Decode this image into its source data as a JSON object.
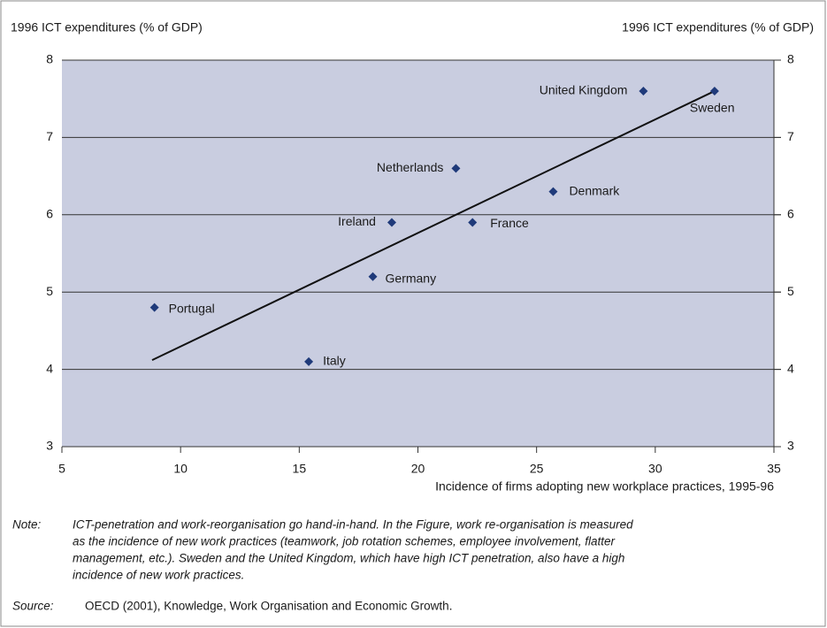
{
  "chart_data": {
    "type": "scatter",
    "y_label": "1996 ICT expenditures (% of GDP)",
    "y2_label": "1996 ICT expenditures (% of GDP)",
    "x_label": "Incidence of firms adopting new workplace practices, 1995-96",
    "point_labels": [
      "United Kingdom",
      "Sweden",
      "Netherlands",
      "Denmark",
      "Ireland",
      "France",
      "Germany",
      "Portugal",
      "Italy"
    ],
    "x": [
      29.5,
      32.5,
      21.6,
      25.7,
      18.9,
      22.3,
      18.1,
      8.9,
      15.4
    ],
    "values": [
      7.6,
      7.6,
      6.6,
      6.3,
      5.9,
      5.9,
      5.2,
      4.8,
      4.1
    ],
    "color": "#1f3a7a",
    "trend": {
      "x": [
        8.8,
        32.5
      ],
      "y": [
        4.12,
        7.6
      ],
      "color": "#111111"
    },
    "xlim": [
      5,
      35
    ],
    "xticks": [
      5,
      10,
      15,
      20,
      25,
      30,
      35
    ],
    "ylim": [
      3,
      8
    ],
    "yticks": [
      3,
      4,
      5,
      6,
      7,
      8
    ],
    "y2lim": [
      3,
      8
    ],
    "y2ticks": [
      3,
      4,
      5,
      6,
      7,
      8
    ],
    "grid": true,
    "note": {
      "label": "Note:",
      "lines": [
        "ICT-penetration and work-reorganisation go hand-in-hand. In the Figure, work re-organisation is measured",
        "as the incidence of new work practices (teamwork, job rotation schemes, employee involvement, flatter",
        "management, etc.). Sweden and the United Kingdom, which have high ICT penetration, also have a high",
        "incidence of new work practices."
      ]
    },
    "source": {
      "label": "Source:",
      "text": "OECD (2001), Knowledge, Work Organisation and Economic Growth."
    }
  }
}
